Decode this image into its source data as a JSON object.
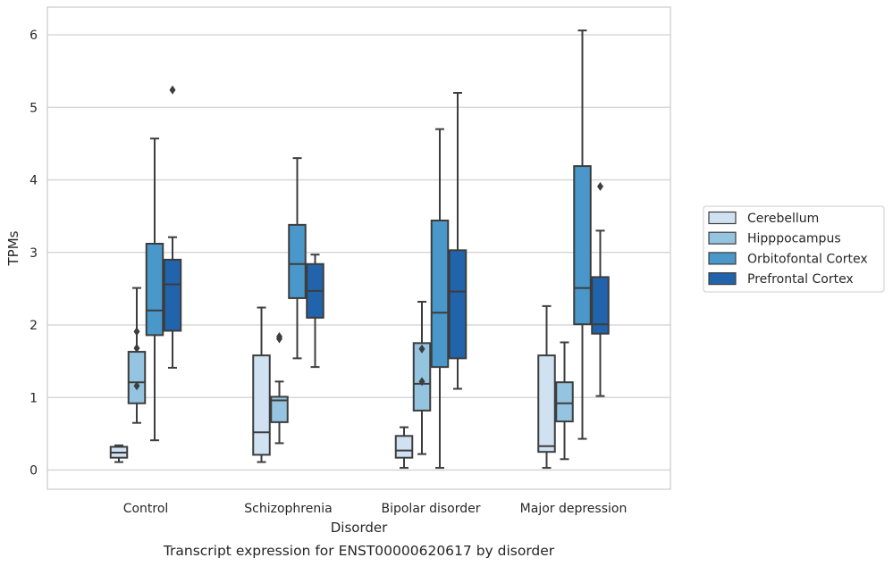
{
  "chart_data": {
    "type": "box",
    "xlabel": "Disorder",
    "ylabel": "TPMs",
    "caption": "Transcript expression for ENST00000620617 by disorder",
    "categories": [
      "Control",
      "Schizophrenia",
      "Bipolar disorder",
      "Major depression"
    ],
    "ylim": [
      -0.25,
      6.35
    ],
    "yticks": [
      0,
      1,
      2,
      3,
      4,
      5,
      6
    ],
    "grid": "horizontal",
    "legend_position": "right",
    "series": [
      {
        "name": "Cerebellum",
        "color": "#d0e1f2",
        "boxes": [
          {
            "whisker_low": 0.11,
            "q1": 0.17,
            "median": 0.24,
            "q3": 0.32,
            "whisker_high": 0.34,
            "outliers": []
          },
          {
            "whisker_low": 0.11,
            "q1": 0.21,
            "median": 0.52,
            "q3": 1.58,
            "whisker_high": 2.24,
            "outliers": []
          },
          {
            "whisker_low": 0.03,
            "q1": 0.17,
            "median": 0.27,
            "q3": 0.47,
            "whisker_high": 0.59,
            "outliers": []
          },
          {
            "whisker_low": 0.03,
            "q1": 0.25,
            "median": 0.33,
            "q3": 1.58,
            "whisker_high": 2.26,
            "outliers": []
          }
        ]
      },
      {
        "name": "Hipppocampus",
        "color": "#94c4df",
        "boxes": [
          {
            "whisker_low": 0.65,
            "q1": 0.92,
            "median": 1.21,
            "q3": 1.63,
            "whisker_high": 2.51,
            "outliers": [
              1.16,
              1.68,
              1.91
            ]
          },
          {
            "whisker_low": 0.37,
            "q1": 0.66,
            "median": 0.96,
            "q3": 1.01,
            "whisker_high": 1.22,
            "outliers": [
              1.81,
              1.84
            ]
          },
          {
            "whisker_low": 0.22,
            "q1": 0.82,
            "median": 1.19,
            "q3": 1.75,
            "whisker_high": 2.32,
            "outliers": [
              1.22,
              1.67
            ]
          },
          {
            "whisker_low": 0.15,
            "q1": 0.67,
            "median": 0.92,
            "q3": 1.21,
            "whisker_high": 1.76,
            "outliers": []
          }
        ]
      },
      {
        "name": "Orbitofontal Cortex",
        "color": "#4a98c9",
        "boxes": [
          {
            "whisker_low": 0.41,
            "q1": 1.86,
            "median": 2.2,
            "q3": 3.12,
            "whisker_high": 4.57,
            "outliers": []
          },
          {
            "whisker_low": 1.54,
            "q1": 2.37,
            "median": 2.84,
            "q3": 3.38,
            "whisker_high": 4.3,
            "outliers": []
          },
          {
            "whisker_low": 0.03,
            "q1": 1.42,
            "median": 2.17,
            "q3": 3.44,
            "whisker_high": 4.7,
            "outliers": []
          },
          {
            "whisker_low": 0.43,
            "q1": 2.01,
            "median": 2.51,
            "q3": 4.19,
            "whisker_high": 6.06,
            "outliers": []
          }
        ]
      },
      {
        "name": "Prefrontal Cortex",
        "color": "#2164ab",
        "boxes": [
          {
            "whisker_low": 1.41,
            "q1": 1.92,
            "median": 2.56,
            "q3": 2.9,
            "whisker_high": 3.21,
            "outliers": [
              5.24
            ]
          },
          {
            "whisker_low": 1.42,
            "q1": 2.1,
            "median": 2.47,
            "q3": 2.84,
            "whisker_high": 2.97,
            "outliers": []
          },
          {
            "whisker_low": 1.12,
            "q1": 1.54,
            "median": 2.46,
            "q3": 3.03,
            "whisker_high": 5.2,
            "outliers": []
          },
          {
            "whisker_low": 1.02,
            "q1": 1.88,
            "median": 2.01,
            "q3": 2.66,
            "whisker_high": 3.3,
            "outliers": [
              3.91
            ]
          }
        ]
      }
    ]
  }
}
